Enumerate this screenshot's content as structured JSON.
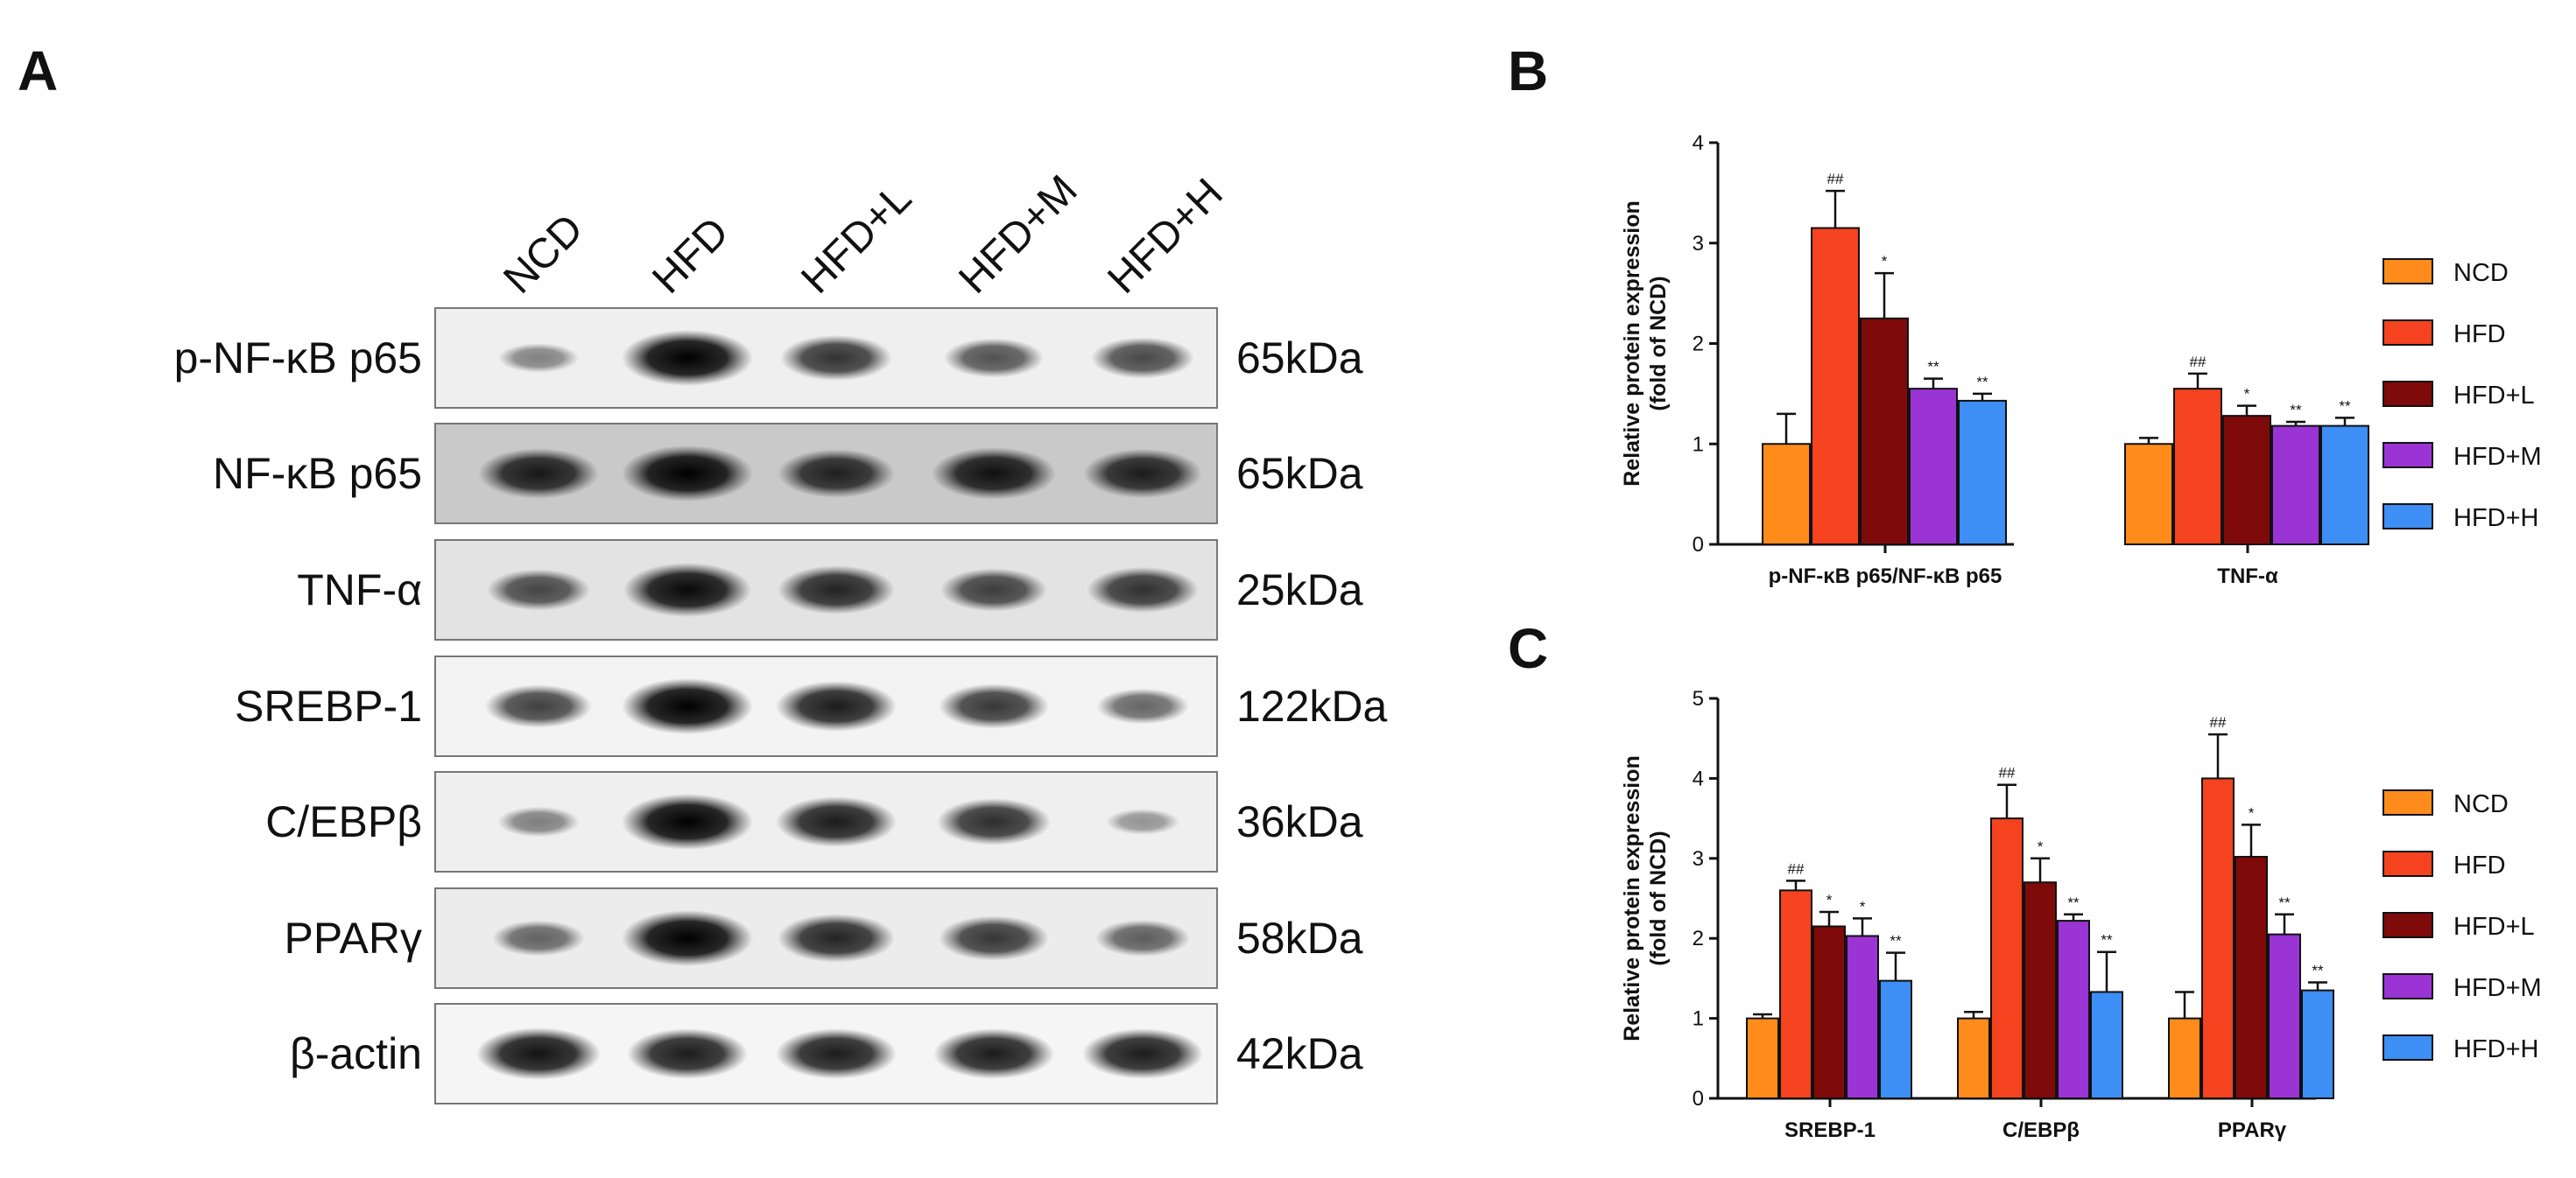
{
  "panels": {
    "a": "A",
    "b": "B",
    "c": "C"
  },
  "blot": {
    "lanes": [
      "NCD",
      "HFD",
      "HFD+L",
      "HFD+M",
      "HFD+H"
    ],
    "rows": [
      {
        "protein": "p-NF-κB p65",
        "kda": "65kDa",
        "intensity": [
          0.28,
          1.0,
          0.72,
          0.55,
          0.6
        ],
        "bg": "#efefef"
      },
      {
        "protein": "NF-κB p65",
        "kda": "65kDa",
        "intensity": [
          0.85,
          1.0,
          0.8,
          0.9,
          0.82
        ],
        "bg": "#c9c9c9"
      },
      {
        "protein": "TNF-α",
        "kda": "25kDa",
        "intensity": [
          0.6,
          0.95,
          0.8,
          0.65,
          0.72
        ],
        "bg": "#e3e3e3"
      },
      {
        "protein": "SREBP-1",
        "kda": "122kDa",
        "intensity": [
          0.65,
          1.0,
          0.85,
          0.7,
          0.45
        ],
        "bg": "#f3f3f3"
      },
      {
        "protein": "C/EBPβ",
        "kda": "36kDa",
        "intensity": [
          0.3,
          1.0,
          0.85,
          0.75,
          0.18
        ],
        "bg": "#efefef"
      },
      {
        "protein": "PPARγ",
        "kda": "58kDa",
        "intensity": [
          0.45,
          1.0,
          0.8,
          0.7,
          0.48
        ],
        "bg": "#ececec"
      },
      {
        "protein": "β-actin",
        "kda": "42kDa",
        "intensity": [
          0.9,
          0.85,
          0.85,
          0.85,
          0.85
        ],
        "bg": "#f5f5f5"
      }
    ]
  },
  "chart_data": [
    {
      "panel": "B",
      "type": "bar",
      "ylabel": [
        "Relative protein expression",
        "(fold of NCD)"
      ],
      "ylim": [
        0,
        4
      ],
      "yticks": [
        0,
        1,
        2,
        3,
        4
      ],
      "categories": [
        "p-NF-κB p65/NF-κB p65",
        "TNF-α"
      ],
      "series": [
        {
          "name": "NCD",
          "color": "#ff8c1a",
          "values": [
            1.0,
            1.0
          ],
          "errors": [
            0.3,
            0.06
          ],
          "sig": [
            "",
            ""
          ]
        },
        {
          "name": "HFD",
          "color": "#f5421f",
          "values": [
            3.15,
            1.55
          ],
          "errors": [
            0.37,
            0.15
          ],
          "sig": [
            "##",
            "##"
          ]
        },
        {
          "name": "HFD+L",
          "color": "#7f0a0a",
          "values": [
            2.25,
            1.28
          ],
          "errors": [
            0.45,
            0.1
          ],
          "sig": [
            "*",
            "*"
          ]
        },
        {
          "name": "HFD+M",
          "color": "#9b34d4",
          "values": [
            1.55,
            1.18
          ],
          "errors": [
            0.1,
            0.04
          ],
          "sig": [
            "**",
            "**"
          ]
        },
        {
          "name": "HFD+H",
          "color": "#3d8ef5",
          "values": [
            1.43,
            1.18
          ],
          "errors": [
            0.07,
            0.08
          ],
          "sig": [
            "**",
            "**"
          ]
        }
      ],
      "legend": "right"
    },
    {
      "panel": "C",
      "type": "bar",
      "ylabel": [
        "Relative protein expression",
        "(fold of NCD)"
      ],
      "ylim": [
        0,
        5
      ],
      "yticks": [
        0,
        1,
        2,
        3,
        4,
        5
      ],
      "categories": [
        "SREBP-1",
        "C/EBPβ",
        "PPARγ"
      ],
      "series": [
        {
          "name": "NCD",
          "color": "#ff8c1a",
          "values": [
            1.0,
            1.0,
            1.0
          ],
          "errors": [
            0.05,
            0.08,
            0.33
          ],
          "sig": [
            "",
            "",
            ""
          ]
        },
        {
          "name": "HFD",
          "color": "#f5421f",
          "values": [
            2.6,
            3.5,
            4.0
          ],
          "errors": [
            0.12,
            0.42,
            0.55
          ],
          "sig": [
            "##",
            "##",
            "##"
          ]
        },
        {
          "name": "HFD+L",
          "color": "#7f0a0a",
          "values": [
            2.15,
            2.7,
            3.02
          ],
          "errors": [
            0.18,
            0.3,
            0.4
          ],
          "sig": [
            "*",
            "*",
            "*"
          ]
        },
        {
          "name": "HFD+M",
          "color": "#9b34d4",
          "values": [
            2.03,
            2.22,
            2.05
          ],
          "errors": [
            0.22,
            0.08,
            0.25
          ],
          "sig": [
            "*",
            "**",
            "**"
          ]
        },
        {
          "name": "HFD+H",
          "color": "#3d8ef5",
          "values": [
            1.47,
            1.33,
            1.35
          ],
          "errors": [
            0.35,
            0.5,
            0.1
          ],
          "sig": [
            "**",
            "**",
            "**"
          ]
        }
      ],
      "legend": "right"
    }
  ]
}
